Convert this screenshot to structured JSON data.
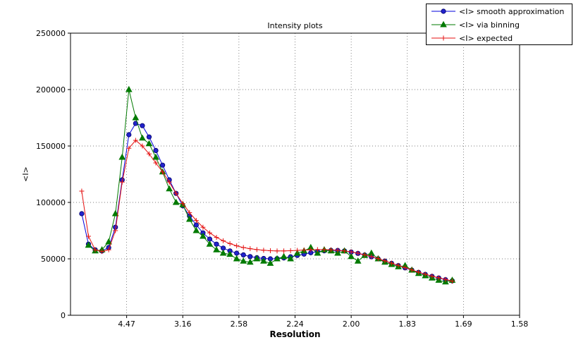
{
  "chart_data": {
    "type": "line",
    "title": "Intensity plots",
    "xlabel": "Resolution",
    "ylabel": "<I>",
    "xlim": [
      0,
      0.4
    ],
    "ylim": [
      0,
      250000
    ],
    "grid": true,
    "legend_position": "upper_right_outside",
    "xticks": [
      {
        "pos": 0.05,
        "label": "4.47"
      },
      {
        "pos": 0.1,
        "label": "3.16"
      },
      {
        "pos": 0.15,
        "label": "2.58"
      },
      {
        "pos": 0.2,
        "label": "2.24"
      },
      {
        "pos": 0.25,
        "label": "2.00"
      },
      {
        "pos": 0.3,
        "label": "1.83"
      },
      {
        "pos": 0.35,
        "label": "1.69"
      },
      {
        "pos": 0.4,
        "label": "1.58"
      }
    ],
    "yticks": [
      0,
      50000,
      100000,
      150000,
      200000,
      250000
    ],
    "x": [
      0.01,
      0.016,
      0.022,
      0.028,
      0.034,
      0.04,
      0.046,
      0.052,
      0.058,
      0.064,
      0.07,
      0.076,
      0.082,
      0.088,
      0.094,
      0.1,
      0.106,
      0.112,
      0.118,
      0.124,
      0.13,
      0.136,
      0.142,
      0.148,
      0.154,
      0.16,
      0.166,
      0.172,
      0.178,
      0.184,
      0.19,
      0.196,
      0.202,
      0.208,
      0.214,
      0.22,
      0.226,
      0.232,
      0.238,
      0.244,
      0.25,
      0.256,
      0.262,
      0.268,
      0.274,
      0.28,
      0.286,
      0.292,
      0.298,
      0.304,
      0.31,
      0.316,
      0.322,
      0.328,
      0.334,
      0.34
    ],
    "series": [
      {
        "id": "smooth-approximation",
        "label": "<I> smooth approximation",
        "color": "#0000dd",
        "marker": "circle",
        "marker_fill": "#2222cc",
        "marker_edge": "#000066",
        "y": [
          90000,
          63000,
          58000,
          57000,
          60000,
          78000,
          120000,
          160000,
          170000,
          168000,
          158000,
          146000,
          133000,
          120000,
          108000,
          97000,
          88000,
          80000,
          73000,
          67500,
          63000,
          59500,
          57000,
          55000,
          53500,
          52000,
          51000,
          50300,
          50000,
          50200,
          50800,
          51800,
          53000,
          54200,
          55400,
          56400,
          57100,
          57500,
          57400,
          57000,
          56000,
          54800,
          53400,
          51800,
          50000,
          48000,
          46000,
          44000,
          42000,
          40000,
          38000,
          36200,
          34500,
          33000,
          31500,
          30500
        ]
      },
      {
        "id": "via-binning",
        "label": "<I> via binning",
        "color": "#007a00",
        "marker": "triangle-up",
        "y": [
          null,
          62000,
          57000,
          58000,
          65000,
          90000,
          140000,
          200000,
          175000,
          157000,
          152000,
          140000,
          127000,
          112000,
          100000,
          98000,
          85000,
          75000,
          70000,
          63000,
          58000,
          55000,
          54000,
          50000,
          48000,
          47000,
          50000,
          48000,
          46000,
          50000,
          52000,
          50000,
          55000,
          57000,
          60000,
          55000,
          58000,
          57000,
          55000,
          57000,
          52000,
          48000,
          53000,
          55000,
          50000,
          47000,
          45000,
          43000,
          44000,
          40000,
          37000,
          35000,
          33000,
          31000,
          29500,
          31000
        ]
      },
      {
        "id": "expected",
        "label": "<I> expected",
        "color": "#e41010",
        "marker": "plus",
        "y": [
          110000,
          70000,
          58000,
          56500,
          58000,
          75000,
          118000,
          148000,
          155000,
          150000,
          143000,
          135000,
          127000,
          118000,
          108000,
          99000,
          91000,
          84000,
          78000,
          73000,
          69000,
          66000,
          63500,
          61500,
          60000,
          59000,
          58200,
          57600,
          57200,
          57000,
          57000,
          57200,
          57500,
          57800,
          58000,
          58200,
          58200,
          58000,
          57600,
          57000,
          56200,
          55000,
          53600,
          52000,
          50200,
          48200,
          46200,
          44200,
          42200,
          40200,
          38200,
          36400,
          34700,
          33200,
          31800,
          30200
        ]
      }
    ]
  }
}
